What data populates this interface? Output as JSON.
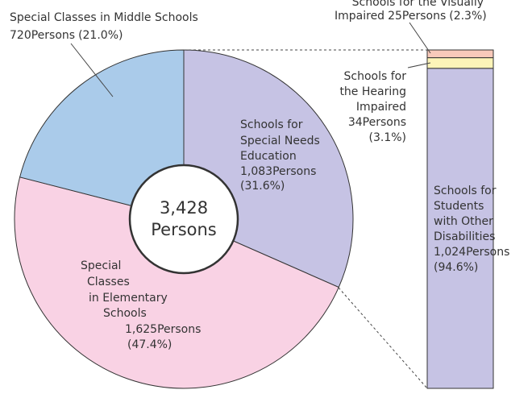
{
  "chart_data": [
    {
      "type": "pie",
      "categories": [
        [
          "Schools for",
          "Special Needs",
          "Education"
        ],
        [
          "Special",
          "Classes",
          "in Elementary",
          "Schools"
        ],
        [
          "Special Classes in Middle Schools"
        ]
      ],
      "values": [
        1083,
        1625,
        720
      ],
      "value_labels": [
        "1,083Persons",
        "1,625Persons",
        "720Persons"
      ],
      "percent_labels": [
        "(31.6%)",
        "(47.4%)",
        "(21.0%)"
      ],
      "colors": [
        "#c6c3e4",
        "#f9d2e4",
        "#aacbea"
      ],
      "center_label": [
        "3,428",
        "Persons"
      ]
    },
    {
      "type": "stacked-bar",
      "categories": [
        [
          "Schools for the Visually",
          "Impaired"
        ],
        [
          "Schools for",
          "the Hearing",
          "Impaired"
        ],
        [
          "Schools for",
          "Students",
          "with Other",
          "Disabilities"
        ]
      ],
      "values": [
        25,
        34,
        1024
      ],
      "value_labels": [
        "25Persons",
        "34Persons",
        "1,024Persons"
      ],
      "percent_labels": [
        "(2.3%)",
        "(3.1%)",
        "(94.6%)"
      ],
      "colors": [
        "#f8c9ba",
        "#fdf4b8",
        "#c6c3e4"
      ]
    }
  ]
}
